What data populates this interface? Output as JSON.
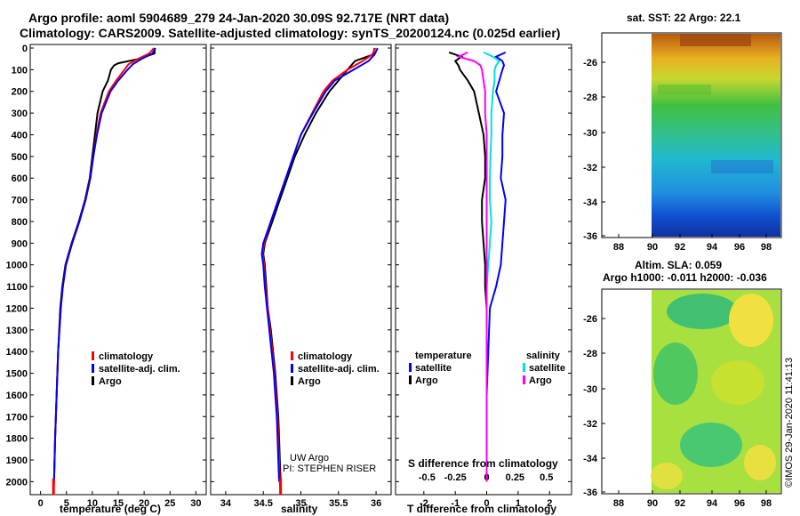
{
  "header": {
    "title_line1": "Argo profile: aoml 5904689_279 24-Jan-2020 30.09S 92.717E (NRT data)",
    "title_line2": "Climatology: CARS2009. Satellite-adjusted climatology: synTS_20200124.nc (0.025d earlier)"
  },
  "colors": {
    "climatology": "#ff0000",
    "satellite": "#0000ff",
    "argo": "#000000",
    "sat_salinity": "#00e0e0",
    "argo_salinity": "#ff00ff"
  },
  "legends": {
    "climatology": "climatology",
    "satellite_adj": "satellite-adj. clim.",
    "argo": "Argo",
    "temperature": "temperature",
    "salinity": "salinity",
    "satellite": "satellite"
  },
  "credit": {
    "line1": "UW Argo",
    "line2": "PI: STEPHEN RISER"
  },
  "watermark": "©IMOS 29-Jan-2020 11:41:13",
  "maps": {
    "sst_title": "sat. SST: 22 Argo: 22.1",
    "sla_title1": "Altim. SLA: 0.059",
    "sla_title2": "Argo h1000: -0.011 h2000: -0.036",
    "lat_ticks": [
      "-26",
      "-28",
      "-30",
      "-32",
      "-34",
      "-36"
    ],
    "lon_ticks": [
      "88",
      "90",
      "92",
      "94",
      "96",
      "98"
    ]
  },
  "chart_data": [
    {
      "type": "line",
      "title": "",
      "xlabel": "temperature (deg C)",
      "ylabel": "",
      "xlim": [
        -2,
        32
      ],
      "ylim": [
        2060,
        0
      ],
      "x_ticks": [
        0,
        5,
        10,
        15,
        20,
        25,
        30
      ],
      "y_ticks": [
        0,
        100,
        200,
        300,
        400,
        500,
        600,
        700,
        800,
        900,
        1000,
        1100,
        1200,
        1300,
        1400,
        1500,
        1600,
        1700,
        1800,
        1900,
        2000
      ],
      "series": [
        {
          "name": "Argo",
          "color_key": "argo",
          "depth": [
            0,
            25,
            50,
            70,
            80,
            100,
            150,
            200,
            300,
            400,
            500,
            600,
            700,
            800,
            900,
            1000,
            1100,
            1200,
            1400,
            1600,
            1800,
            2000
          ],
          "values": [
            22.1,
            22.0,
            19.0,
            15.0,
            14.2,
            13.6,
            13.0,
            12.0,
            11.0,
            10.5,
            10.0,
            9.5,
            8.6,
            7.4,
            6.0,
            4.8,
            4.2,
            3.8,
            3.4,
            3.1,
            2.8,
            2.6
          ]
        },
        {
          "name": "climatology",
          "color_key": "climatology",
          "depth": [
            0,
            25,
            50,
            75,
            100,
            150,
            200,
            300,
            400,
            500,
            600,
            700,
            800,
            900,
            1000,
            1100,
            1200,
            1400,
            1600,
            1800,
            2000,
            2060
          ],
          "values": [
            21.9,
            21.0,
            18.8,
            17.0,
            16.2,
            14.6,
            13.2,
            11.6,
            10.8,
            10.2,
            9.6,
            8.7,
            7.5,
            6.1,
            4.9,
            4.3,
            3.9,
            3.4,
            3.1,
            2.8,
            2.6,
            2.5
          ]
        },
        {
          "name": "satellite-adj. clim.",
          "color_key": "satellite",
          "depth": [
            0,
            25,
            50,
            75,
            100,
            150,
            200,
            300,
            400,
            500,
            600,
            700,
            800,
            900,
            1000,
            1100,
            1200,
            1400,
            1600,
            1800,
            2000
          ],
          "values": [
            22.2,
            21.6,
            19.5,
            17.8,
            16.8,
            15.0,
            13.5,
            11.8,
            10.9,
            10.2,
            9.6,
            8.7,
            7.5,
            6.1,
            4.9,
            4.3,
            3.9,
            3.4,
            3.1,
            2.8,
            2.6
          ]
        }
      ]
    },
    {
      "type": "line",
      "title": "",
      "xlabel": "salinity",
      "ylabel": "",
      "xlim": [
        33.8,
        36.2
      ],
      "ylim": [
        2060,
        0
      ],
      "x_ticks": [
        34,
        34.5,
        35,
        35.5,
        36
      ],
      "x_tick_labels": [
        "34",
        "34.5",
        "35",
        "35.5",
        "36"
      ],
      "series": [
        {
          "name": "Argo",
          "color_key": "argo",
          "depth": [
            0,
            30,
            60,
            100,
            150,
            200,
            300,
            400,
            500,
            600,
            700,
            800,
            900,
            950,
            1000,
            1100,
            1200,
            1300,
            1400,
            1500,
            1600,
            1700,
            1800,
            1900,
            2000
          ],
          "values": [
            35.98,
            35.96,
            35.72,
            35.62,
            35.5,
            35.38,
            35.2,
            35.05,
            34.92,
            34.82,
            34.72,
            34.62,
            34.52,
            34.5,
            34.52,
            34.54,
            34.56,
            34.6,
            34.63,
            34.66,
            34.68,
            34.7,
            34.71,
            34.72,
            34.73
          ]
        },
        {
          "name": "climatology",
          "color_key": "climatology",
          "depth": [
            0,
            30,
            60,
            100,
            150,
            200,
            300,
            400,
            500,
            600,
            700,
            800,
            900,
            950,
            1000,
            1100,
            1200,
            1300,
            1400,
            1500,
            1600,
            1700,
            1800,
            1900,
            2000,
            2060
          ],
          "values": [
            35.99,
            35.95,
            35.82,
            35.62,
            35.42,
            35.3,
            35.15,
            35.0,
            34.9,
            34.8,
            34.7,
            34.6,
            34.51,
            34.49,
            34.51,
            34.53,
            34.56,
            34.59,
            34.62,
            34.65,
            34.67,
            34.69,
            34.7,
            34.71,
            34.72,
            34.73
          ]
        },
        {
          "name": "satellite-adj. clim.",
          "color_key": "satellite",
          "depth": [
            0,
            30,
            60,
            100,
            150,
            200,
            300,
            400,
            500,
            600,
            700,
            800,
            900,
            950,
            1000,
            1100,
            1200,
            1300,
            1400,
            1500,
            1600,
            1700,
            1800,
            1900,
            2000
          ],
          "values": [
            36.02,
            35.98,
            35.9,
            35.7,
            35.45,
            35.33,
            35.16,
            35.0,
            34.9,
            34.8,
            34.7,
            34.6,
            34.5,
            34.48,
            34.5,
            34.52,
            34.55,
            34.58,
            34.61,
            34.64,
            34.66,
            34.68,
            34.69,
            34.7,
            34.71
          ]
        }
      ]
    },
    {
      "type": "line",
      "title": "",
      "xlabel": "T difference from climatology",
      "xlabel2": "S difference from climatology",
      "xlim": [
        -2.9,
        2.7
      ],
      "ylim": [
        2060,
        0
      ],
      "x_ticks": [
        -2,
        -1,
        0,
        1,
        2
      ],
      "x_tick_labels": [
        "-2",
        "-1",
        "0",
        "1",
        "2"
      ],
      "s_ticks": [
        -1.9,
        -1.0,
        0,
        0.9,
        1.9
      ],
      "s_tick_labels": [
        "-0.5",
        "-0.25",
        "0",
        "0.25",
        "0.5"
      ],
      "series": [
        {
          "name": "temperature Argo",
          "color_key": "argo",
          "depth": [
            20,
            40,
            60,
            80,
            100,
            150,
            200,
            300,
            400,
            500,
            600,
            700,
            800,
            900,
            1000,
            1100,
            1200,
            1400,
            1600,
            1800,
            2000
          ],
          "values": [
            -1.2,
            -0.8,
            -1.0,
            -0.9,
            -0.85,
            -0.6,
            -0.4,
            -0.25,
            -0.1,
            -0.05,
            -0.05,
            -0.15,
            -0.15,
            -0.1,
            -0.05,
            -0.05,
            0.0,
            0.0,
            0.0,
            0.0,
            0.0
          ]
        },
        {
          "name": "temperature satellite",
          "color_key": "satellite",
          "depth": [
            20,
            40,
            60,
            80,
            100,
            150,
            200,
            300,
            400,
            500,
            600,
            700,
            800,
            900,
            1000,
            1100,
            1200,
            1400,
            1600,
            1800,
            2000
          ],
          "values": [
            0.6,
            0.3,
            0.5,
            0.55,
            0.5,
            0.4,
            0.3,
            0.55,
            0.5,
            0.5,
            0.45,
            0.6,
            0.55,
            0.5,
            0.45,
            0.3,
            0.1,
            0.05,
            0.0,
            0.0,
            0.0
          ]
        },
        {
          "name": "salinity satellite",
          "color_key": "sat_salinity",
          "depth": [
            20,
            40,
            60,
            80,
            100,
            150,
            200,
            300,
            400,
            500,
            600,
            700,
            800,
            900,
            1000,
            1100,
            1200,
            1400,
            1600,
            1800,
            2000
          ],
          "values": [
            -0.1,
            0.2,
            0.4,
            0.3,
            0.25,
            0.25,
            0.2,
            0.15,
            0.15,
            0.12,
            0.1,
            0.1,
            0.15,
            0.1,
            0.05,
            0.0,
            0.0,
            0.0,
            0.0,
            0.0,
            0.0
          ]
        },
        {
          "name": "salinity Argo",
          "color_key": "argo_salinity",
          "depth": [
            20,
            40,
            60,
            80,
            100,
            150,
            200,
            300,
            400,
            500,
            600,
            700,
            800,
            900,
            1000,
            1100,
            1200,
            1400,
            1600,
            1800,
            2000
          ],
          "values": [
            -0.6,
            -0.9,
            -0.4,
            -0.2,
            -0.15,
            -0.1,
            -0.05,
            -0.05,
            0.0,
            0.0,
            0.0,
            0.0,
            0.0,
            0.0,
            0.0,
            0.0,
            0.0,
            0.0,
            0.0,
            0.0,
            0.0
          ]
        }
      ]
    }
  ]
}
